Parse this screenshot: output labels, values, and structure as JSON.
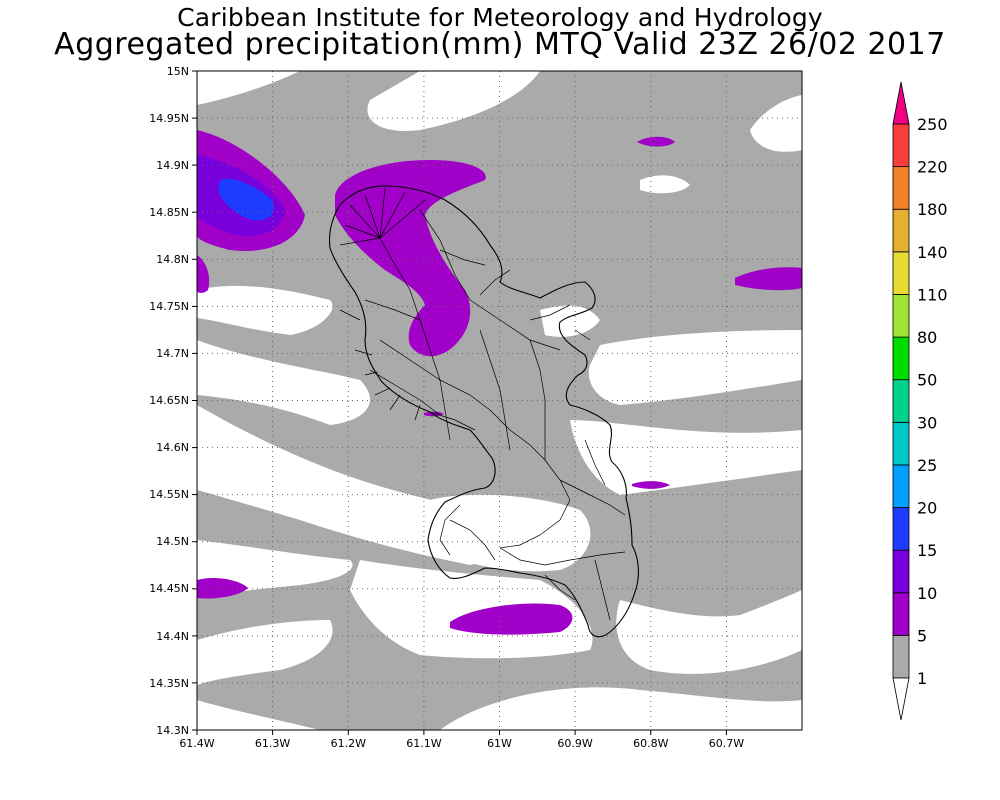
{
  "title": {
    "line1": "Caribbean Institute for Meteorology and Hydrology",
    "line2": "Aggregated precipitation(mm) MTQ Valid 23Z 26/02 2017"
  },
  "map": {
    "region": "Martinique",
    "lon_range": [
      -61.4,
      -60.76
    ],
    "lat_range": [
      14.3,
      15.0
    ],
    "lon_ticks": [
      "61.4W",
      "61.3W",
      "61.2W",
      "61.1W",
      "61W",
      "60.9W",
      "60.8W",
      "60.7W"
    ],
    "lat_ticks": [
      "15N",
      "14.95N",
      "14.9N",
      "14.85N",
      "14.8N",
      "14.75N",
      "14.7N",
      "14.65N",
      "14.6N",
      "14.55N",
      "14.5N",
      "14.45N",
      "14.4N",
      "14.35N",
      "14.3N"
    ],
    "grid": true
  },
  "legend": {
    "units": "mm",
    "bins": [
      {
        "label": "1",
        "color": "#ffffff"
      },
      {
        "label": "5",
        "color": "#aaaaaa"
      },
      {
        "label": "10",
        "color": "#a000c8"
      },
      {
        "label": "15",
        "color": "#7800dc"
      },
      {
        "label": "20",
        "color": "#1e3cff"
      },
      {
        "label": "25",
        "color": "#00a0ff"
      },
      {
        "label": "30",
        "color": "#00c8c8"
      },
      {
        "label": "50",
        "color": "#00d28c"
      },
      {
        "label": "80",
        "color": "#00dc00"
      },
      {
        "label": "110",
        "color": "#a0e632"
      },
      {
        "label": "140",
        "color": "#e6dc32"
      },
      {
        "label": "180",
        "color": "#e6af2d"
      },
      {
        "label": "220",
        "color": "#f08228"
      },
      {
        "label": "250",
        "color": "#fa3c3c"
      }
    ],
    "top_arrow_color": "#f00082"
  },
  "colors": {
    "gray": "#aaaaaa",
    "purple": "#a000c8",
    "violet": "#7800dc",
    "blue": "#1e3cff"
  }
}
